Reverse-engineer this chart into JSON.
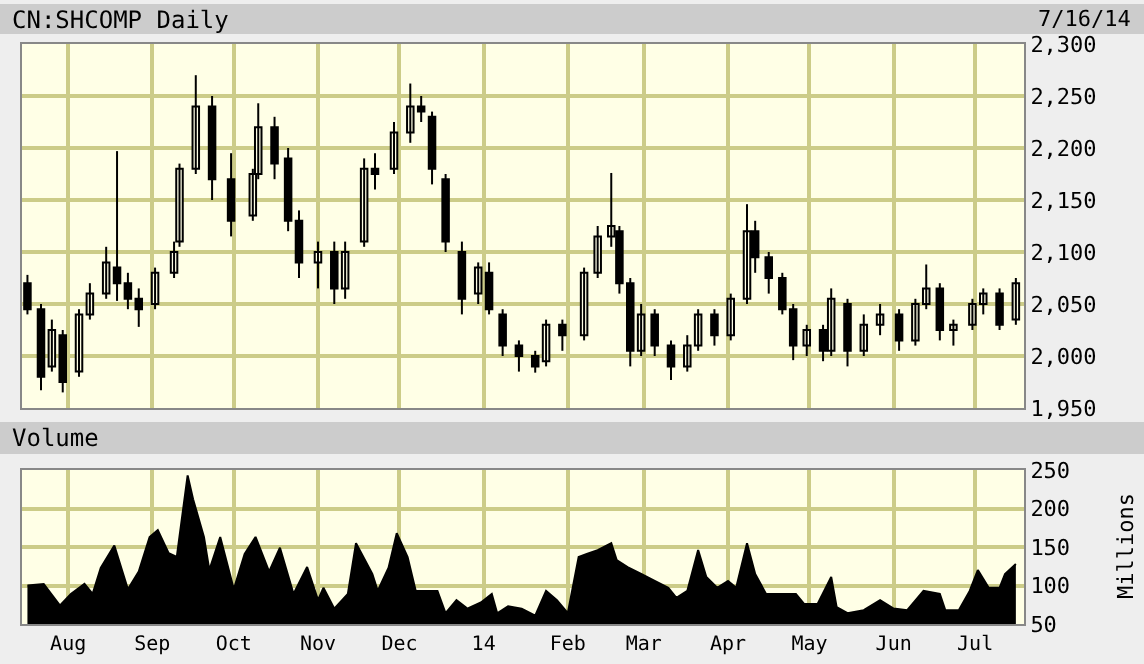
{
  "chart_data": [
    {
      "type": "candlestick",
      "title": "CN:SHCOMP Daily",
      "annotations": [
        "7/16/14"
      ],
      "color": "#000000",
      "x": [
        "2013-07-17",
        "2013-07-22",
        "2013-07-26",
        "2013-07-30",
        "2013-08-05",
        "2013-08-09",
        "2013-08-15",
        "2013-08-19",
        "2013-08-23",
        "2013-08-27",
        "2013-09-02",
        "2013-09-09",
        "2013-09-11",
        "2013-09-17",
        "2013-09-23",
        "2013-09-30",
        "2013-10-08",
        "2013-10-10",
        "2013-10-16",
        "2013-10-21",
        "2013-10-25",
        "2013-11-01",
        "2013-11-07",
        "2013-11-11",
        "2013-11-18",
        "2013-11-22",
        "2013-11-29",
        "2013-12-05",
        "2013-12-09",
        "2013-12-13",
        "2013-12-18",
        "2013-12-24",
        "2013-12-30",
        "2014-01-03",
        "2014-01-08",
        "2014-01-14",
        "2014-01-20",
        "2014-01-24",
        "2014-01-30",
        "2014-02-07",
        "2014-02-12",
        "2014-02-17",
        "2014-02-20",
        "2014-02-24",
        "2014-02-28",
        "2014-03-05",
        "2014-03-11",
        "2014-03-17",
        "2014-03-21",
        "2014-03-27",
        "2014-04-02",
        "2014-04-08",
        "2014-04-11",
        "2014-04-16",
        "2014-04-21",
        "2014-04-25",
        "2014-04-30",
        "2014-05-06",
        "2014-05-09",
        "2014-05-15",
        "2014-05-21",
        "2014-05-27",
        "2014-06-03",
        "2014-06-09",
        "2014-06-13",
        "2014-06-18",
        "2014-06-23",
        "2014-06-30",
        "2014-07-04",
        "2014-07-10",
        "2014-07-16"
      ],
      "ohlc": [
        [
          2070,
          2078,
          2040,
          2045
        ],
        [
          2045,
          2050,
          1967,
          1980
        ],
        [
          1990,
          2035,
          1985,
          2025
        ],
        [
          2020,
          2025,
          1965,
          1975
        ],
        [
          1985,
          2045,
          1980,
          2040
        ],
        [
          2040,
          2070,
          2035,
          2060
        ],
        [
          2060,
          2105,
          2055,
          2090
        ],
        [
          2085,
          2197,
          2053,
          2070
        ],
        [
          2070,
          2080,
          2045,
          2055
        ],
        [
          2055,
          2065,
          2028,
          2045
        ],
        [
          2050,
          2085,
          2045,
          2080
        ],
        [
          2080,
          2110,
          2075,
          2100
        ],
        [
          2110,
          2185,
          2105,
          2180
        ],
        [
          2180,
          2270,
          2175,
          2240
        ],
        [
          2240,
          2250,
          2150,
          2170
        ],
        [
          2170,
          2195,
          2115,
          2130
        ],
        [
          2135,
          2180,
          2130,
          2175
        ],
        [
          2175,
          2243,
          2170,
          2220
        ],
        [
          2220,
          2230,
          2170,
          2185
        ],
        [
          2190,
          2200,
          2120,
          2130
        ],
        [
          2130,
          2140,
          2075,
          2090
        ],
        [
          2090,
          2110,
          2065,
          2100
        ],
        [
          2100,
          2110,
          2050,
          2065
        ],
        [
          2065,
          2110,
          2055,
          2100
        ],
        [
          2110,
          2190,
          2105,
          2180
        ],
        [
          2180,
          2195,
          2160,
          2175
        ],
        [
          2180,
          2225,
          2175,
          2215
        ],
        [
          2215,
          2262,
          2205,
          2240
        ],
        [
          2240,
          2250,
          2225,
          2235
        ],
        [
          2230,
          2235,
          2165,
          2180
        ],
        [
          2170,
          2175,
          2100,
          2110
        ],
        [
          2100,
          2110,
          2040,
          2055
        ],
        [
          2060,
          2090,
          2050,
          2085
        ],
        [
          2080,
          2090,
          2040,
          2045
        ],
        [
          2040,
          2045,
          2000,
          2010
        ],
        [
          2010,
          2015,
          1985,
          2000
        ],
        [
          2000,
          2005,
          1984,
          1990
        ],
        [
          1995,
          2035,
          1990,
          2030
        ],
        [
          2030,
          2035,
          2005,
          2020
        ],
        [
          2020,
          2085,
          2015,
          2080
        ],
        [
          2080,
          2125,
          2075,
          2115
        ],
        [
          2115,
          2176,
          2105,
          2125
        ],
        [
          2120,
          2125,
          2060,
          2070
        ],
        [
          2070,
          2075,
          1990,
          2005
        ],
        [
          2005,
          2050,
          2000,
          2040
        ],
        [
          2040,
          2045,
          2000,
          2010
        ],
        [
          2010,
          2015,
          1977,
          1990
        ],
        [
          1990,
          2020,
          1985,
          2010
        ],
        [
          2010,
          2045,
          2005,
          2040
        ],
        [
          2040,
          2045,
          2010,
          2020
        ],
        [
          2020,
          2060,
          2015,
          2055
        ],
        [
          2055,
          2146,
          2050,
          2120
        ],
        [
          2120,
          2130,
          2080,
          2095
        ],
        [
          2095,
          2100,
          2060,
          2075
        ],
        [
          2075,
          2080,
          2040,
          2045
        ],
        [
          2045,
          2050,
          1996,
          2010
        ],
        [
          2010,
          2030,
          2000,
          2025
        ],
        [
          2025,
          2030,
          1995,
          2005
        ],
        [
          2005,
          2065,
          2000,
          2055
        ],
        [
          2050,
          2055,
          1990,
          2005
        ],
        [
          2005,
          2040,
          2000,
          2030
        ],
        [
          2030,
          2050,
          2020,
          2040
        ],
        [
          2040,
          2045,
          2005,
          2015
        ],
        [
          2015,
          2055,
          2010,
          2050
        ],
        [
          2050,
          2088,
          2045,
          2065
        ],
        [
          2065,
          2070,
          2015,
          2025
        ],
        [
          2025,
          2035,
          2010,
          2030
        ],
        [
          2030,
          2055,
          2025,
          2050
        ],
        [
          2050,
          2065,
          2040,
          2060
        ],
        [
          2060,
          2065,
          2025,
          2030
        ],
        [
          2035,
          2075,
          2030,
          2070
        ]
      ],
      "xlim": [
        "2013-07-15",
        "2014-07-19"
      ],
      "xticks": [
        {
          "value": "2013-08-01",
          "label": null
        },
        {
          "value": "2013-09-01",
          "label": null
        },
        {
          "value": "2013-10-01",
          "label": null
        },
        {
          "value": "2013-11-01",
          "label": null
        },
        {
          "value": "2013-12-01",
          "label": null
        },
        {
          "value": "2014-01-01",
          "label": null
        },
        {
          "value": "2014-02-01",
          "label": null
        },
        {
          "value": "2014-03-01",
          "label": null
        },
        {
          "value": "2014-04-01",
          "label": null
        },
        {
          "value": "2014-05-01",
          "label": null
        },
        {
          "value": "2014-06-01",
          "label": null
        },
        {
          "value": "2014-07-01",
          "label": null
        }
      ],
      "ylim": [
        1950,
        2300
      ],
      "yticks": [
        {
          "value": 1950,
          "label": "1,950"
        },
        {
          "value": 2000,
          "label": "2,000"
        },
        {
          "value": 2050,
          "label": "2,050"
        },
        {
          "value": 2100,
          "label": "2,100"
        },
        {
          "value": 2150,
          "label": "2,150"
        },
        {
          "value": 2200,
          "label": "2,200"
        },
        {
          "value": 2250,
          "label": "2,250"
        },
        {
          "value": 2300,
          "label": "2,300"
        }
      ],
      "grid": true,
      "tick_labels": "y"
    },
    {
      "type": "area",
      "title": "Volume",
      "ylabel": "Millions",
      "color": "#000000",
      "x": [
        "2013-07-17",
        "2013-07-23",
        "2013-07-29",
        "2013-08-02",
        "2013-08-07",
        "2013-08-10",
        "2013-08-13",
        "2013-08-18",
        "2013-08-23",
        "2013-08-27",
        "2013-08-31",
        "2013-09-03",
        "2013-09-07",
        "2013-09-10",
        "2013-09-14",
        "2013-09-16",
        "2013-09-20",
        "2013-09-22",
        "2013-09-26",
        "2013-10-01",
        "2013-10-05",
        "2013-10-09",
        "2013-10-14",
        "2013-10-18",
        "2013-10-23",
        "2013-10-28",
        "2013-11-01",
        "2013-11-03",
        "2013-11-07",
        "2013-11-12",
        "2013-11-15",
        "2013-11-21",
        "2013-11-23",
        "2013-11-27",
        "2013-11-30",
        "2013-12-04",
        "2013-12-07",
        "2013-12-15",
        "2013-12-18",
        "2013-12-22",
        "2013-12-26",
        "2013-12-31",
        "2014-01-04",
        "2014-01-06",
        "2014-01-10",
        "2014-01-15",
        "2014-01-20",
        "2014-01-24",
        "2014-01-28",
        "2014-02-01",
        "2014-02-05",
        "2014-02-08",
        "2014-02-12",
        "2014-02-17",
        "2014-02-19",
        "2014-02-23",
        "2014-02-28",
        "2014-03-05",
        "2014-03-10",
        "2014-03-13",
        "2014-03-17",
        "2014-03-21",
        "2014-03-24",
        "2014-03-28",
        "2014-04-01",
        "2014-04-04",
        "2014-04-08",
        "2014-04-11",
        "2014-04-15",
        "2014-04-20",
        "2014-04-26",
        "2014-04-29",
        "2014-05-04",
        "2014-05-09",
        "2014-05-11",
        "2014-05-15",
        "2014-05-21",
        "2014-05-27",
        "2014-06-01",
        "2014-06-06",
        "2014-06-12",
        "2014-06-18",
        "2014-06-20",
        "2014-06-25",
        "2014-06-29",
        "2014-07-02",
        "2014-07-06",
        "2014-07-10",
        "2014-07-12",
        "2014-07-16"
      ],
      "values": [
        100,
        102,
        74,
        89,
        102,
        89,
        123,
        152,
        95,
        118,
        163,
        172,
        142,
        137,
        243,
        212,
        163,
        120,
        163,
        95,
        141,
        163,
        118,
        149,
        89,
        124,
        81,
        97,
        70,
        89,
        155,
        115,
        93,
        123,
        168,
        137,
        93,
        93,
        64,
        81,
        70,
        78,
        89,
        64,
        73,
        70,
        61,
        93,
        81,
        64,
        137,
        141,
        146,
        155,
        133,
        124,
        115,
        106,
        97,
        84,
        93,
        146,
        111,
        97,
        106,
        97,
        155,
        115,
        89,
        89,
        89,
        76,
        76,
        111,
        72,
        64,
        68,
        81,
        70,
        68,
        93,
        89,
        68,
        68,
        93,
        120,
        97,
        97,
        115,
        128
      ],
      "xlim": [
        "2013-07-15",
        "2014-07-19"
      ],
      "xticks": [
        {
          "value": "2013-08-01",
          "label": "Aug"
        },
        {
          "value": "2013-09-01",
          "label": "Sep"
        },
        {
          "value": "2013-10-01",
          "label": "Oct"
        },
        {
          "value": "2013-11-01",
          "label": "Nov"
        },
        {
          "value": "2013-12-01",
          "label": "Dec"
        },
        {
          "value": "2014-01-01",
          "label": "14"
        },
        {
          "value": "2014-02-01",
          "label": "Feb"
        },
        {
          "value": "2014-03-01",
          "label": "Mar"
        },
        {
          "value": "2014-04-01",
          "label": "Apr"
        },
        {
          "value": "2014-05-01",
          "label": "May"
        },
        {
          "value": "2014-06-01",
          "label": "Jun"
        },
        {
          "value": "2014-07-01",
          "label": "Jul"
        }
      ],
      "ylim": [
        50,
        250
      ],
      "yticks": [
        50,
        100,
        150,
        200,
        250
      ],
      "grid": true
    }
  ]
}
